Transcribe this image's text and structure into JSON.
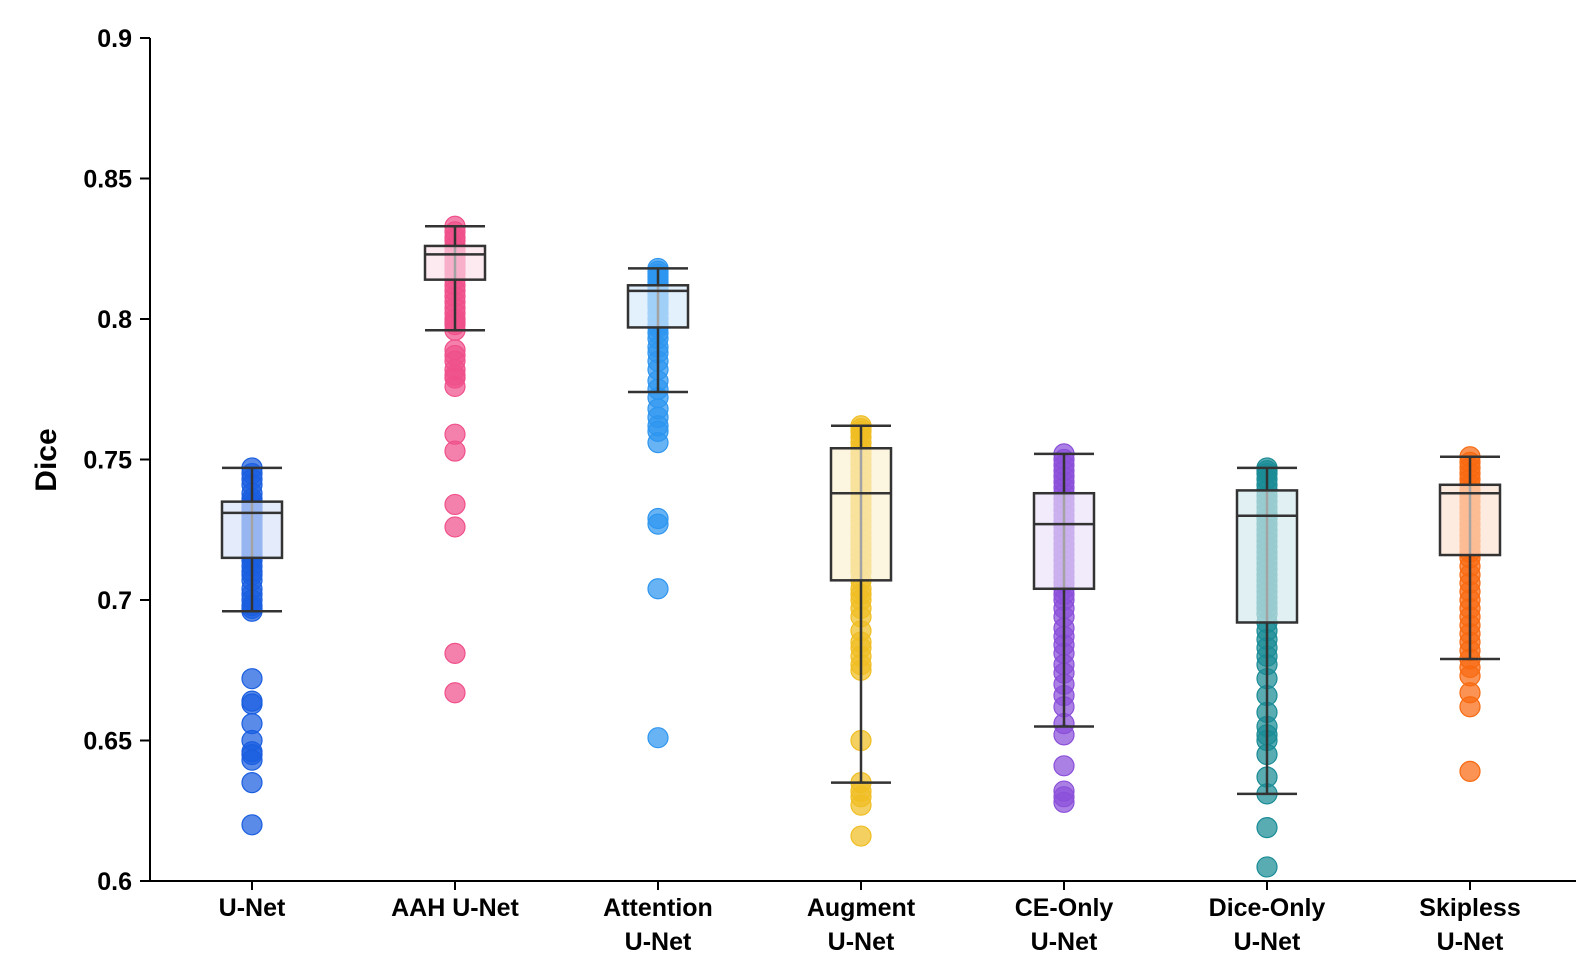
{
  "chart_data": {
    "type": "box",
    "title": "",
    "xlabel": "",
    "ylabel": "Dice",
    "ylim": [
      0.6,
      0.9
    ],
    "yticks": [
      "0.6",
      "0.65",
      "0.7",
      "0.75",
      "0.8",
      "0.85",
      "0.9"
    ],
    "ytick_values": [
      0.6,
      0.65,
      0.7,
      0.75,
      0.8,
      0.85,
      0.9
    ],
    "grid": false,
    "legend": "none",
    "categories": [
      [
        "U-Net"
      ],
      [
        "AAH U-Net"
      ],
      [
        "Attention",
        "U-Net"
      ],
      [
        "Augment",
        "U-Net"
      ],
      [
        "CE-Only",
        "U-Net"
      ],
      [
        "Dice-Only",
        "U-Net"
      ],
      [
        "Skipless",
        "U-Net"
      ]
    ],
    "series": [
      {
        "color": "#1a5ee0",
        "box_fill": "#c3d4f5",
        "whisker_low": 0.696,
        "q1": 0.715,
        "median": 0.731,
        "q3": 0.735,
        "whisker_high": 0.747,
        "points": [
          0.747,
          0.745,
          0.743,
          0.741,
          0.738,
          0.736,
          0.735,
          0.734,
          0.733,
          0.732,
          0.731,
          0.73,
          0.729,
          0.728,
          0.727,
          0.726,
          0.725,
          0.724,
          0.723,
          0.722,
          0.721,
          0.72,
          0.719,
          0.718,
          0.717,
          0.716,
          0.715,
          0.714,
          0.712,
          0.71,
          0.709,
          0.707,
          0.704,
          0.702,
          0.7,
          0.698,
          0.697,
          0.696,
          0.672,
          0.664,
          0.663,
          0.656,
          0.65,
          0.646,
          0.645,
          0.643,
          0.635,
          0.62
        ]
      },
      {
        "color": "#f0508a",
        "box_fill": "#fbd0e0",
        "whisker_low": 0.796,
        "q1": 0.814,
        "median": 0.823,
        "q3": 0.826,
        "whisker_high": 0.833,
        "points": [
          0.833,
          0.831,
          0.829,
          0.828,
          0.826,
          0.825,
          0.824,
          0.823,
          0.822,
          0.821,
          0.82,
          0.819,
          0.818,
          0.817,
          0.816,
          0.814,
          0.812,
          0.81,
          0.808,
          0.806,
          0.804,
          0.802,
          0.8,
          0.799,
          0.798,
          0.796,
          0.789,
          0.787,
          0.785,
          0.782,
          0.78,
          0.779,
          0.776,
          0.759,
          0.753,
          0.734,
          0.726,
          0.681,
          0.667
        ]
      },
      {
        "color": "#2e96f0",
        "box_fill": "#c2e0fa",
        "whisker_low": 0.774,
        "q1": 0.797,
        "median": 0.81,
        "q3": 0.812,
        "whisker_high": 0.818,
        "points": [
          0.818,
          0.817,
          0.816,
          0.815,
          0.814,
          0.813,
          0.812,
          0.811,
          0.81,
          0.809,
          0.808,
          0.807,
          0.806,
          0.805,
          0.804,
          0.802,
          0.8,
          0.798,
          0.797,
          0.795,
          0.793,
          0.79,
          0.788,
          0.785,
          0.782,
          0.778,
          0.775,
          0.772,
          0.768,
          0.765,
          0.762,
          0.76,
          0.756,
          0.729,
          0.727,
          0.704,
          0.651
        ]
      },
      {
        "color": "#f0be23",
        "box_fill": "#f9e8b8",
        "whisker_low": 0.635,
        "q1": 0.707,
        "median": 0.738,
        "q3": 0.754,
        "whisker_high": 0.762,
        "points": [
          0.762,
          0.761,
          0.76,
          0.758,
          0.756,
          0.754,
          0.752,
          0.75,
          0.748,
          0.746,
          0.744,
          0.742,
          0.74,
          0.738,
          0.736,
          0.734,
          0.732,
          0.73,
          0.728,
          0.726,
          0.724,
          0.722,
          0.72,
          0.718,
          0.716,
          0.714,
          0.712,
          0.71,
          0.707,
          0.704,
          0.702,
          0.7,
          0.697,
          0.694,
          0.689,
          0.685,
          0.683,
          0.68,
          0.677,
          0.675,
          0.65,
          0.635,
          0.632,
          0.63,
          0.627,
          0.616
        ]
      },
      {
        "color": "#8b4fd9",
        "box_fill": "#e3d3f5",
        "whisker_low": 0.655,
        "q1": 0.704,
        "median": 0.727,
        "q3": 0.738,
        "whisker_high": 0.752,
        "points": [
          0.752,
          0.75,
          0.748,
          0.746,
          0.744,
          0.742,
          0.74,
          0.738,
          0.736,
          0.734,
          0.732,
          0.73,
          0.728,
          0.726,
          0.724,
          0.722,
          0.72,
          0.718,
          0.716,
          0.714,
          0.712,
          0.71,
          0.708,
          0.706,
          0.704,
          0.702,
          0.7,
          0.697,
          0.694,
          0.69,
          0.687,
          0.684,
          0.681,
          0.677,
          0.674,
          0.67,
          0.666,
          0.662,
          0.656,
          0.652,
          0.641,
          0.632,
          0.63,
          0.628
        ]
      },
      {
        "color": "#1a8c96",
        "box_fill": "#bde0e4",
        "whisker_low": 0.631,
        "q1": 0.692,
        "median": 0.73,
        "q3": 0.739,
        "whisker_high": 0.747,
        "points": [
          0.747,
          0.746,
          0.745,
          0.743,
          0.741,
          0.739,
          0.737,
          0.735,
          0.733,
          0.731,
          0.729,
          0.727,
          0.725,
          0.723,
          0.721,
          0.719,
          0.717,
          0.715,
          0.713,
          0.711,
          0.709,
          0.707,
          0.705,
          0.703,
          0.701,
          0.699,
          0.697,
          0.695,
          0.692,
          0.689,
          0.686,
          0.683,
          0.68,
          0.677,
          0.672,
          0.666,
          0.66,
          0.655,
          0.652,
          0.65,
          0.645,
          0.637,
          0.631,
          0.619,
          0.605
        ]
      },
      {
        "color": "#f86a10",
        "box_fill": "#fcd2b8",
        "whisker_low": 0.679,
        "q1": 0.716,
        "median": 0.738,
        "q3": 0.741,
        "whisker_high": 0.751,
        "points": [
          0.751,
          0.749,
          0.747,
          0.745,
          0.743,
          0.741,
          0.739,
          0.737,
          0.735,
          0.733,
          0.731,
          0.729,
          0.727,
          0.725,
          0.723,
          0.721,
          0.719,
          0.717,
          0.715,
          0.712,
          0.709,
          0.706,
          0.703,
          0.7,
          0.697,
          0.694,
          0.691,
          0.688,
          0.685,
          0.682,
          0.679,
          0.676,
          0.673,
          0.667,
          0.662,
          0.639
        ]
      }
    ]
  }
}
